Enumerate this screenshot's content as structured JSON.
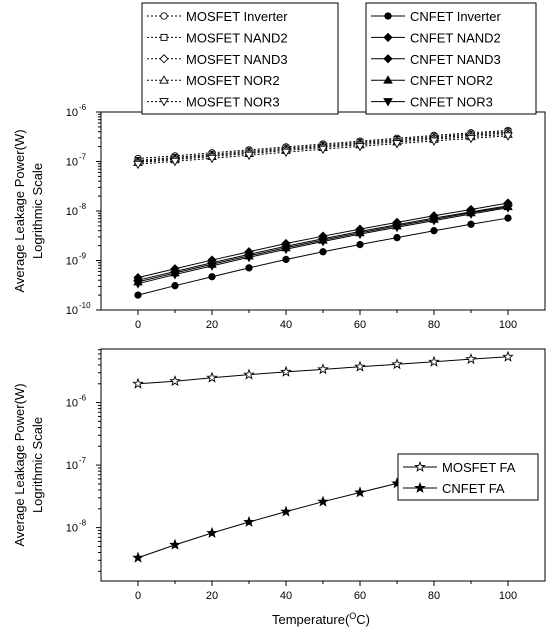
{
  "chart_data": [
    {
      "type": "line",
      "scale": "log",
      "x": [
        0,
        10,
        20,
        30,
        40,
        50,
        60,
        70,
        80,
        90,
        100
      ],
      "xticks": [
        "0",
        "20",
        "40",
        "60",
        "80",
        "100"
      ],
      "xlim": [
        -10,
        110
      ],
      "ylim": [
        1e-10,
        1e-06
      ],
      "yticks": [
        {
          "value": 1e-10,
          "base": "10",
          "exp": "-10"
        },
        {
          "value": 1e-09,
          "base": "10",
          "exp": "-9"
        },
        {
          "value": 1e-08,
          "base": "10",
          "exp": "-8"
        },
        {
          "value": 1e-07,
          "base": "10",
          "exp": "-7"
        },
        {
          "value": 1e-06,
          "base": "10",
          "exp": "-6"
        }
      ],
      "ylabel": [
        "Average Leakage Power(W)",
        "Logrithmic Scale"
      ],
      "xlabel": "",
      "legend_placement": "top, two boxes",
      "series": [
        {
          "name": "MOSFET Inverter",
          "marker": "circle-open",
          "dash": "dotted",
          "values": [
            1.15e-07,
            1.3e-07,
            1.5e-07,
            1.72e-07,
            1.97e-07,
            2.26e-07,
            2.58e-07,
            2.95e-07,
            3.36e-07,
            3.8e-07,
            4.25e-07
          ]
        },
        {
          "name": "MOSFET NAND2",
          "marker": "square-open",
          "dash": "dotted",
          "values": [
            1.05e-07,
            1.21e-07,
            1.4e-07,
            1.62e-07,
            1.86e-07,
            2.13e-07,
            2.44e-07,
            2.78e-07,
            3.16e-07,
            3.58e-07,
            4e-07
          ]
        },
        {
          "name": "MOSFET NAND3",
          "marker": "diamond-open",
          "dash": "dotted",
          "values": [
            1e-07,
            1.15e-07,
            1.33e-07,
            1.53e-07,
            1.76e-07,
            2.02e-07,
            2.31e-07,
            2.63e-07,
            2.99e-07,
            3.38e-07,
            3.8e-07
          ]
        },
        {
          "name": "MOSFET NOR2",
          "marker": "triangle-up-open",
          "dash": "dotted",
          "values": [
            9.5e-08,
            1.09e-07,
            1.26e-07,
            1.45e-07,
            1.67e-07,
            1.91e-07,
            2.18e-07,
            2.48e-07,
            2.81e-07,
            3.17e-07,
            3.55e-07
          ]
        },
        {
          "name": "MOSFET NOR3",
          "marker": "triangle-down-open",
          "dash": "dotted",
          "values": [
            8.8e-08,
            1.01e-07,
            1.16e-07,
            1.34e-07,
            1.54e-07,
            1.77e-07,
            2.02e-07,
            2.3e-07,
            2.6e-07,
            2.93e-07,
            3.3e-07
          ]
        },
        {
          "name": "CNFET Inverter",
          "marker": "circle-filled",
          "dash": "solid",
          "values": [
            2e-10,
            3.1e-10,
            4.7e-10,
            7.1e-10,
            1.05e-09,
            1.5e-09,
            2.1e-09,
            2.9e-09,
            4e-09,
            5.4e-09,
            7.2e-09
          ]
        },
        {
          "name": "CNFET NAND2",
          "marker": "diamond-filled",
          "dash": "solid",
          "values": [
            4.5e-10,
            6.8e-10,
            1.02e-09,
            1.5e-09,
            2.2e-09,
            3.1e-09,
            4.3e-09,
            5.9e-09,
            8e-09,
            1.07e-08,
            1.45e-08
          ]
        },
        {
          "name": "CNFET NAND3",
          "marker": "diamond-filled",
          "dash": "solid",
          "values": [
            4e-10,
            6e-10,
            9e-10,
            1.33e-09,
            1.94e-09,
            2.75e-09,
            3.85e-09,
            5.3e-09,
            7.2e-09,
            9.6e-09,
            1.28e-08
          ]
        },
        {
          "name": "CNFET NOR2",
          "marker": "triangle-up-filled",
          "dash": "solid",
          "values": [
            3.7e-10,
            5.6e-10,
            8.4e-10,
            1.24e-09,
            1.81e-09,
            2.58e-09,
            3.62e-09,
            5e-09,
            6.8e-09,
            9.2e-09,
            1.22e-08
          ]
        },
        {
          "name": "CNFET NOR3",
          "marker": "triangle-down-filled",
          "dash": "solid",
          "values": [
            3.4e-10,
            5.2e-10,
            7.8e-10,
            1.16e-09,
            1.69e-09,
            2.42e-09,
            3.4e-09,
            4.7e-09,
            6.4e-09,
            8.7e-09,
            1.16e-08
          ]
        }
      ]
    },
    {
      "type": "line",
      "scale": "log",
      "x": [
        0,
        10,
        20,
        30,
        40,
        50,
        60,
        70,
        80,
        90,
        100
      ],
      "xticks": [
        "0",
        "20",
        "40",
        "60",
        "80",
        "100"
      ],
      "xlim": [
        -10,
        110
      ],
      "ylim": [
        1.4e-09,
        7.2e-06
      ],
      "yticks": [
        {
          "value": 1e-08,
          "base": "10",
          "exp": "-8"
        },
        {
          "value": 1e-07,
          "base": "10",
          "exp": "-7"
        },
        {
          "value": 1e-06,
          "base": "10",
          "exp": "-6"
        }
      ],
      "ylabel": [
        "Average Leakage Power(W)",
        "Logrithmic Scale"
      ],
      "xlabel": "Temperature(",
      "xlabel_sup": "O",
      "xlabel_tail": "C)",
      "legend_placement": "right",
      "series": [
        {
          "name": "MOSFET FA",
          "marker": "star-open",
          "dash": "solid",
          "values": [
            2e-06,
            2.2e-06,
            2.5e-06,
            2.8e-06,
            3.1e-06,
            3.4e-06,
            3.75e-06,
            4.1e-06,
            4.5e-06,
            4.95e-06,
            5.4e-06
          ]
        },
        {
          "name": "CNFET FA",
          "marker": "star-filled",
          "dash": "solid",
          "values": [
            3.3e-09,
            5.3e-09,
            8.2e-09,
            1.23e-08,
            1.8e-08,
            2.6e-08,
            3.65e-08,
            5.1e-08,
            7e-08,
            9.5e-08,
            1.25e-07
          ]
        }
      ]
    }
  ]
}
